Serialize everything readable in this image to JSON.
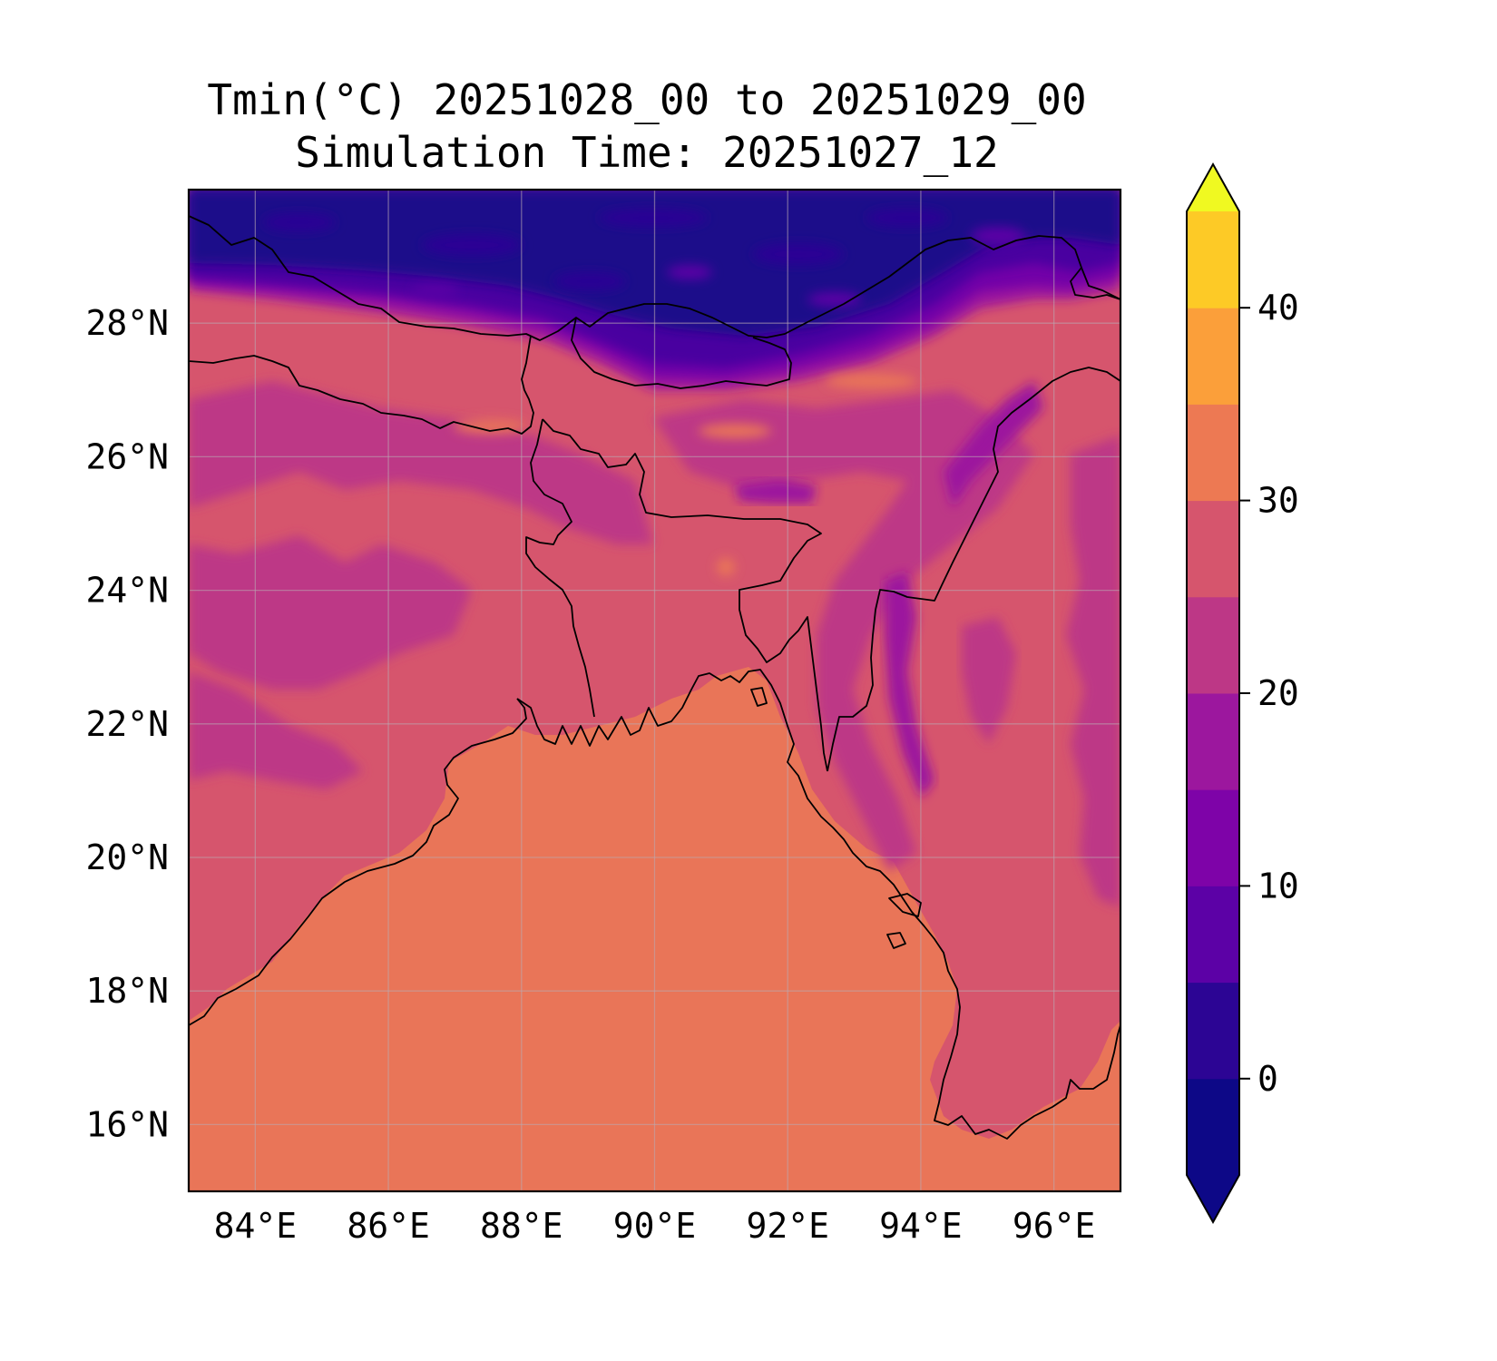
{
  "title": {
    "line1": "Tmin(°C) 20251028_00 to 20251029_00",
    "line2": "Simulation Time: 20251027_12"
  },
  "map": {
    "x_ticks": [
      "84°E",
      "86°E",
      "88°E",
      "90°E",
      "92°E",
      "94°E",
      "96°E"
    ],
    "y_ticks": [
      "28°N",
      "26°N",
      "24°N",
      "22°N",
      "20°N",
      "18°N",
      "16°N"
    ],
    "lon_range": [
      83,
      97
    ],
    "lat_range": [
      15,
      30
    ],
    "gridlines": true,
    "colors": {
      "sea": "#e97558",
      "land_warm": "#d6556d",
      "land_mid": "#bd3786",
      "band_15_20": "#9c179e",
      "band_10_15": "#7201a8",
      "band_5_10": "#4903a0",
      "cold": "#1f0c8a"
    }
  },
  "colorbar": {
    "ticks": [
      "0",
      "10",
      "20",
      "30",
      "40"
    ],
    "tick_values": [
      0,
      10,
      20,
      30,
      40
    ],
    "bounds": [
      -5,
      45
    ],
    "extend": "both",
    "levels": [
      {
        "from": -5,
        "to": 0,
        "color": "#0d0887"
      },
      {
        "from": 0,
        "to": 5,
        "color": "#2c0594"
      },
      {
        "from": 5,
        "to": 10,
        "color": "#5c01a6"
      },
      {
        "from": 10,
        "to": 15,
        "color": "#7e03a8"
      },
      {
        "from": 15,
        "to": 20,
        "color": "#9c179e"
      },
      {
        "from": 20,
        "to": 25,
        "color": "#bd3786"
      },
      {
        "from": 25,
        "to": 30,
        "color": "#d6556d"
      },
      {
        "from": 30,
        "to": 35,
        "color": "#ed7953"
      },
      {
        "from": 35,
        "to": 40,
        "color": "#fb9f3a"
      },
      {
        "from": 40,
        "to": 45,
        "color": "#fdca26"
      }
    ],
    "under_color": "#0d0887",
    "over_color": "#f0f921"
  }
}
